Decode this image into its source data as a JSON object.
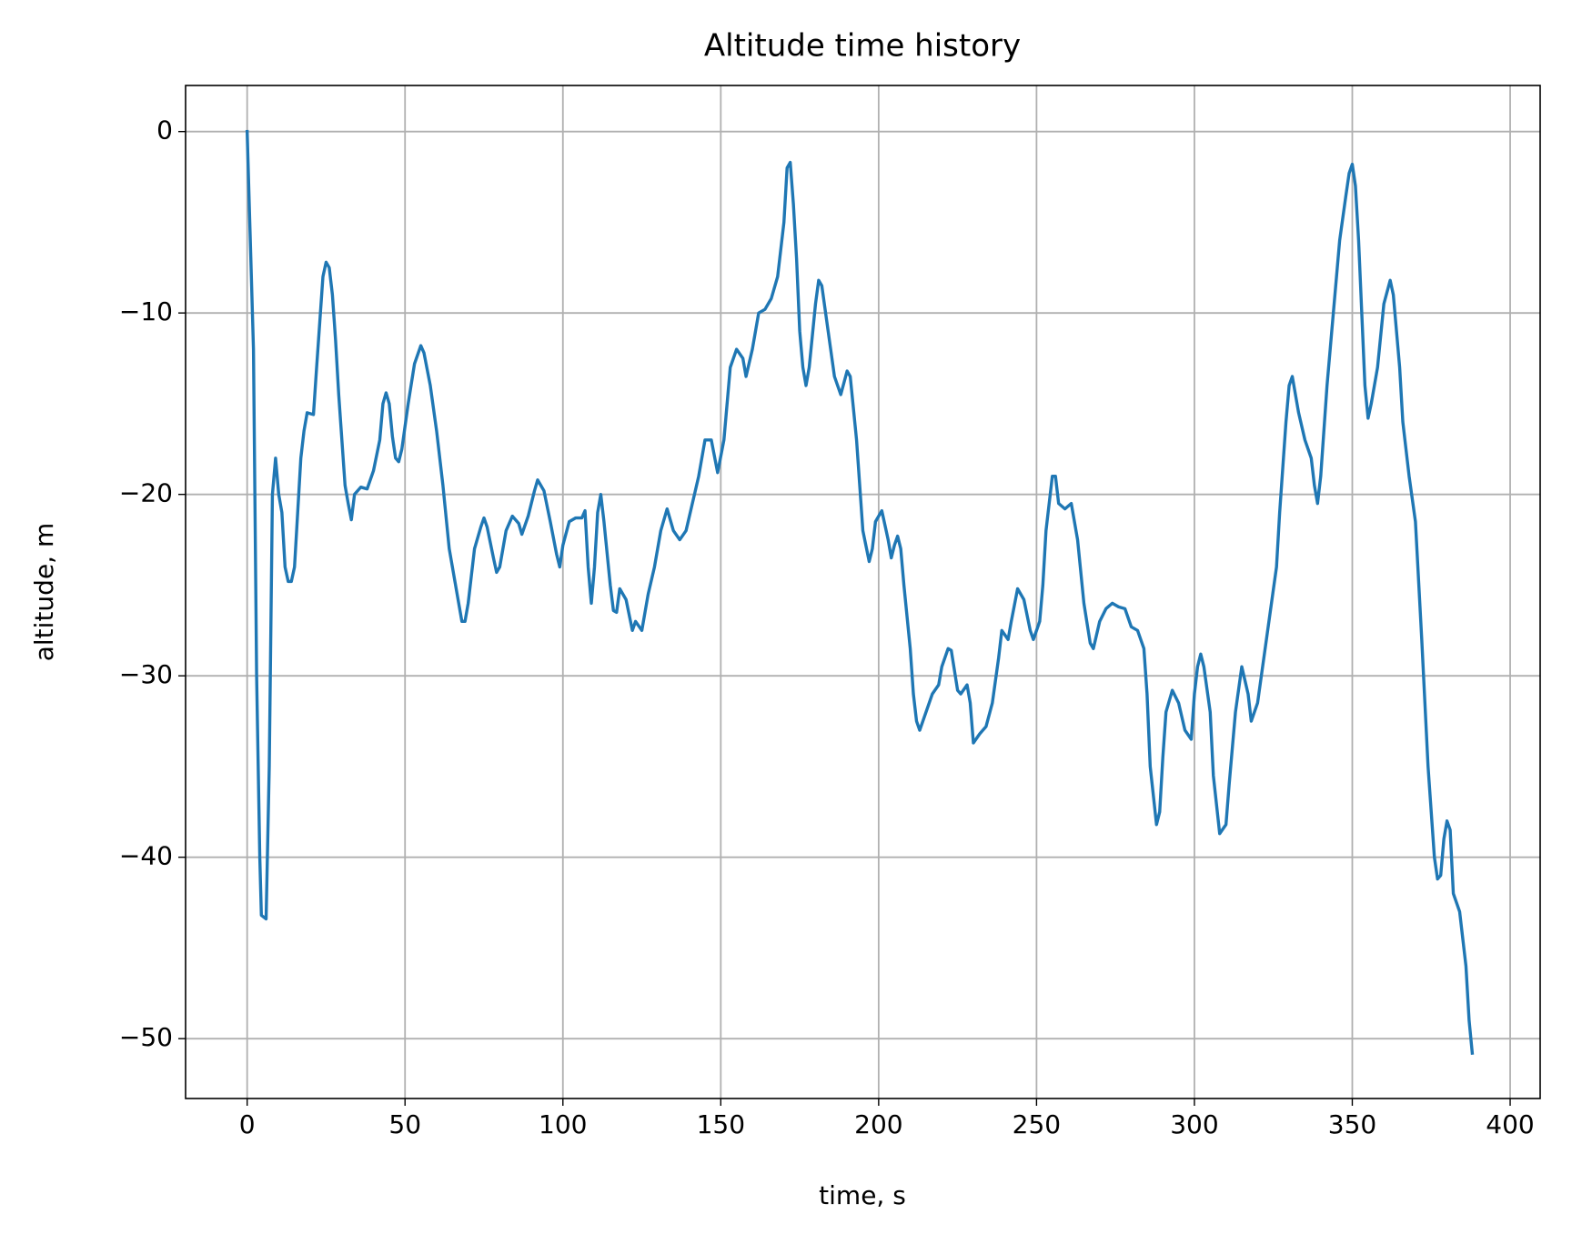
{
  "chart_data": {
    "type": "line",
    "title": "Altitude time history",
    "x_label": "time, s",
    "y_label": "altitude, m",
    "color": "#1f77b4",
    "grid": true,
    "xlim": [
      -19.5,
      409.5
    ],
    "ylim": [
      -53.3,
      2.54
    ],
    "xticks": [
      0,
      50,
      100,
      150,
      200,
      250,
      300,
      350,
      400
    ],
    "yticks": [
      {
        "value": -50,
        "label": "−50"
      },
      {
        "value": -40,
        "label": "−40"
      },
      {
        "value": -30,
        "label": "−30"
      },
      {
        "value": -20,
        "label": "−20"
      },
      {
        "value": -10,
        "label": "−10"
      },
      0
    ],
    "x": [
      0,
      2,
      3,
      4,
      4.5,
      6,
      7,
      8,
      9,
      10,
      11,
      12,
      13,
      14,
      15,
      16,
      17,
      18,
      19,
      21,
      22,
      23,
      24,
      25,
      26,
      27,
      28,
      29,
      30,
      31,
      32,
      33,
      34,
      36,
      38,
      40,
      42,
      43,
      44,
      45,
      46,
      47,
      48,
      49,
      51,
      53,
      55,
      56,
      58,
      60,
      62,
      64,
      66,
      68,
      69,
      70,
      72,
      74,
      75,
      76,
      78,
      79,
      80,
      82,
      84,
      86,
      87,
      89,
      91,
      92,
      94,
      96,
      98,
      99,
      100,
      102,
      104,
      106,
      107,
      108,
      109,
      110,
      111,
      112,
      113,
      115,
      116,
      117,
      118,
      120,
      122,
      123,
      125,
      127,
      129,
      131,
      133,
      135,
      137,
      139,
      141,
      143,
      145,
      147,
      149,
      151,
      153,
      155,
      157,
      158,
      160,
      162,
      164,
      166,
      168,
      170,
      171,
      172,
      173,
      174,
      175,
      176,
      177,
      178,
      180,
      181,
      182,
      184,
      186,
      188,
      190,
      191,
      193,
      195,
      197,
      198,
      199,
      201,
      203,
      204,
      205,
      206,
      207,
      208,
      210,
      211,
      212,
      213,
      215,
      217,
      219,
      220,
      222,
      223,
      225,
      226,
      228,
      229,
      230,
      232,
      234,
      236,
      238,
      239,
      241,
      242,
      244,
      246,
      248,
      249,
      251,
      252,
      253,
      255,
      256,
      257,
      259,
      261,
      263,
      265,
      267,
      268,
      270,
      272,
      274,
      276,
      278,
      280,
      282,
      284,
      285,
      286,
      288,
      289,
      290,
      291,
      293,
      295,
      297,
      299,
      300,
      301,
      302,
      303,
      305,
      306,
      308,
      310,
      311,
      313,
      315,
      317,
      318,
      320,
      322,
      324,
      326,
      327,
      329,
      330,
      331,
      333,
      335,
      337,
      338,
      339,
      340,
      342,
      344,
      346,
      348,
      349,
      350,
      351,
      352,
      353,
      354,
      355,
      356,
      358,
      360,
      362,
      363,
      365,
      366,
      368,
      370,
      372,
      374,
      376,
      377,
      378,
      379,
      380,
      381,
      382,
      384,
      386,
      387,
      388
    ],
    "values": [
      0,
      -12,
      -30,
      -40,
      -43.2,
      -43.4,
      -35,
      -20,
      -18,
      -20,
      -21,
      -24,
      -24.8,
      -24.8,
      -24,
      -21,
      -18,
      -16.5,
      -15.5,
      -15.6,
      -13,
      -10.5,
      -8,
      -7.2,
      -7.5,
      -9,
      -11.5,
      -14.5,
      -17,
      -19.5,
      -20.5,
      -21.4,
      -20,
      -19.6,
      -19.7,
      -18.7,
      -17,
      -15,
      -14.4,
      -15,
      -16.8,
      -18,
      -18.2,
      -17.5,
      -15,
      -12.8,
      -11.8,
      -12.2,
      -14,
      -16.5,
      -19.5,
      -23,
      -25,
      -27,
      -27,
      -26,
      -23,
      -21.8,
      -21.3,
      -21.8,
      -23.5,
      -24.3,
      -24,
      -22,
      -21.2,
      -21.6,
      -22.2,
      -21.2,
      -19.8,
      -19.2,
      -19.8,
      -21.5,
      -23.3,
      -24,
      -22.8,
      -21.5,
      -21.3,
      -21.3,
      -20.9,
      -24,
      -26,
      -24,
      -21,
      -20,
      -21.5,
      -25,
      -26.4,
      -26.5,
      -25.2,
      -25.8,
      -27.5,
      -27,
      -27.5,
      -25.5,
      -24,
      -22,
      -20.8,
      -22,
      -22.5,
      -22,
      -20.5,
      -19,
      -17,
      -17,
      -18.8,
      -17,
      -13,
      -12,
      -12.5,
      -13.5,
      -12,
      -10,
      -9.8,
      -9.2,
      -8,
      -5,
      -2,
      -1.7,
      -4,
      -7,
      -11,
      -13,
      -14,
      -13,
      -9.5,
      -8.2,
      -8.5,
      -11,
      -13.5,
      -14.5,
      -13.2,
      -13.5,
      -17,
      -22,
      -23.7,
      -23,
      -21.5,
      -20.9,
      -22.5,
      -23.5,
      -22.8,
      -22.3,
      -23,
      -25,
      -28.5,
      -31,
      -32.5,
      -33,
      -32,
      -31,
      -30.5,
      -29.5,
      -28.5,
      -28.6,
      -30.8,
      -31,
      -30.5,
      -31.5,
      -33.7,
      -33.2,
      -32.8,
      -31.5,
      -29,
      -27.5,
      -28,
      -27,
      -25.2,
      -25.8,
      -27.5,
      -28,
      -27,
      -25,
      -22,
      -19,
      -19,
      -20.5,
      -20.8,
      -20.5,
      -22.5,
      -26,
      -28.2,
      -28.5,
      -27,
      -26.3,
      -26,
      -26.2,
      -26.3,
      -27.3,
      -27.5,
      -28.5,
      -31,
      -35,
      -38.2,
      -37.5,
      -34.5,
      -32,
      -30.8,
      -31.5,
      -33,
      -33.5,
      -31,
      -29.5,
      -28.8,
      -29.5,
      -32,
      -35.5,
      -38.7,
      -38.2,
      -36,
      -32,
      -29.5,
      -31,
      -32.5,
      -31.5,
      -29,
      -26.5,
      -24,
      -21,
      -16,
      -14,
      -13.5,
      -15.5,
      -17,
      -18,
      -19.5,
      -20.5,
      -19,
      -14,
      -10,
      -6,
      -3.5,
      -2.3,
      -1.8,
      -3,
      -6,
      -10,
      -14,
      -15.8,
      -15,
      -13,
      -9.5,
      -8.2,
      -9,
      -13,
      -16,
      -19,
      -21.5,
      -28,
      -35,
      -40,
      -41.2,
      -41,
      -39,
      -38,
      -38.5,
      -42,
      -43,
      -46,
      -49,
      -50.8
    ]
  }
}
